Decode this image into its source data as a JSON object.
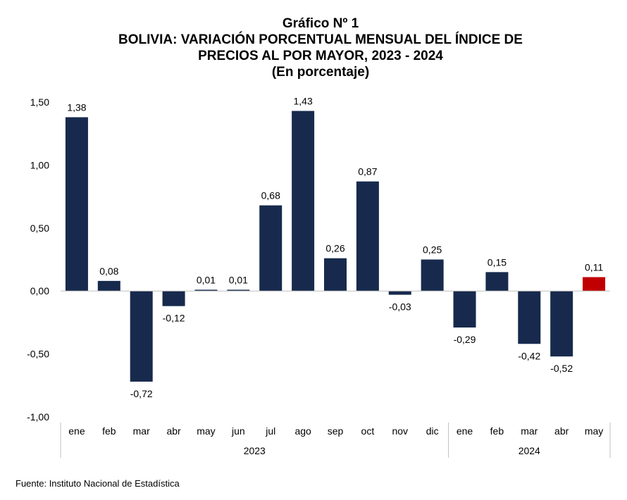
{
  "header": {
    "line1": "Gráfico Nº 1",
    "line2": "BOLIVIA: VARIACIÓN PORCENTUAL MENSUAL DEL ÍNDICE DE",
    "line3": "PRECIOS AL POR MAYOR, 2023 - 2024",
    "line4": "(En porcentaje)"
  },
  "source": "Fuente: Instituto Nacional de Estadística",
  "chart_data": {
    "type": "bar",
    "title": "BOLIVIA: VARIACIÓN PORCENTUAL MENSUAL DEL ÍNDICE DE PRECIOS AL POR MAYOR, 2023 - 2024",
    "subtitle": "(En porcentaje)",
    "xlabel": "",
    "ylabel": "",
    "ylim": [
      -1.0,
      1.5
    ],
    "yticks": [
      "1,50",
      "1,00",
      "0,50",
      "0,00",
      "-0,50",
      "-1,00"
    ],
    "ytick_values": [
      1.5,
      1.0,
      0.5,
      0.0,
      -0.5,
      -1.0
    ],
    "grid": false,
    "legend": "none",
    "categories": [
      "ene",
      "feb",
      "mar",
      "abr",
      "may",
      "jun",
      "jul",
      "ago",
      "sep",
      "oct",
      "nov",
      "dic",
      "ene",
      "feb",
      "mar",
      "abr",
      "may"
    ],
    "groups": [
      {
        "label": "2023",
        "count": 12
      },
      {
        "label": "2024",
        "count": 5
      }
    ],
    "values": [
      1.38,
      0.08,
      -0.72,
      -0.12,
      0.01,
      0.01,
      0.68,
      1.43,
      0.26,
      0.87,
      -0.03,
      0.25,
      -0.29,
      0.15,
      -0.42,
      -0.52,
      0.11
    ],
    "data_labels": [
      "1,38",
      "0,08",
      "-0,72",
      "-0,12",
      "0,01",
      "0,01",
      "0,68",
      "1,43",
      "0,26",
      "0,87",
      "-0,03",
      "0,25",
      "-0,29",
      "0,15",
      "-0,42",
      "-0,52",
      "0,11"
    ],
    "colors": {
      "bar": "#172a4d",
      "highlight": "#c00000",
      "axis": "#bfbfbf"
    },
    "highlight_index": 16
  }
}
